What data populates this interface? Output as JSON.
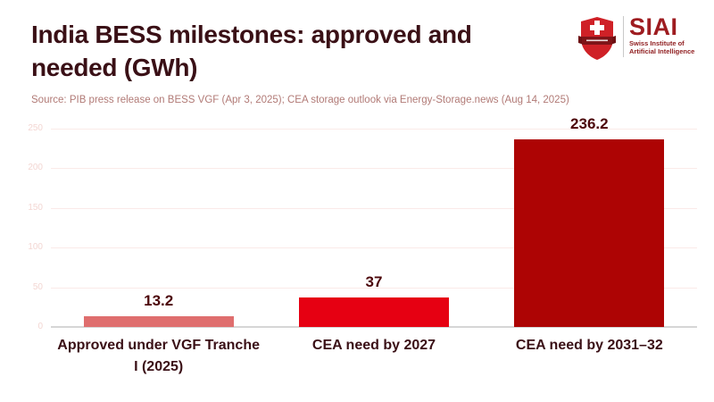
{
  "header": {
    "title": "India BESS milestones: approved and needed (GWh)",
    "title_lines": [
      "India BESS milestones: approved and",
      "needed (GWh)"
    ],
    "source": "Source: PIB press release on BESS VGF (Apr 3, 2025); CEA storage outlook via Energy-Storage.news (Aug 14, 2025)"
  },
  "logo": {
    "acronym": "SIAI",
    "subtitle_line1": "Swiss Institute of",
    "subtitle_line2": "Artificial Intelligence",
    "icon": "swiss-shield-ribbon-icon",
    "colors": {
      "shield": "#cf2127",
      "cross": "#ffffff",
      "ribbon": "#7e1418",
      "text": "#9e1c20"
    }
  },
  "chart_data": {
    "type": "bar",
    "title": "India BESS milestones: approved and needed (GWh)",
    "categories": [
      "Approved under VGF Tranche I (2025)",
      "CEA need by 2027",
      "CEA need by 2031–32"
    ],
    "category_label_lines": [
      [
        "Approved under VGF Tranche",
        "I (2025)"
      ],
      [
        "CEA need by 2027"
      ],
      [
        "CEA need by 2031–32"
      ]
    ],
    "values": [
      13.2,
      37,
      236.2
    ],
    "value_labels": [
      "13.2",
      "37",
      "236.2"
    ],
    "bar_colors": [
      "#df6e6e",
      "#e60012",
      "#ad0404"
    ],
    "xlabel": "",
    "ylabel": "",
    "ylim": [
      0,
      250
    ],
    "yticks": [
      0,
      50,
      100,
      150,
      200,
      250
    ],
    "grid": true,
    "legend": false
  },
  "colors": {
    "title_text": "#3a1016",
    "source_text": "#b17a76",
    "value_label_text": "#4c070b",
    "category_label_text": "#3a1016",
    "tick_label_text": "#f3d6d2",
    "gridline": "#fbeae8",
    "axis_line": "#d6d6d6",
    "background": "#ffffff"
  }
}
